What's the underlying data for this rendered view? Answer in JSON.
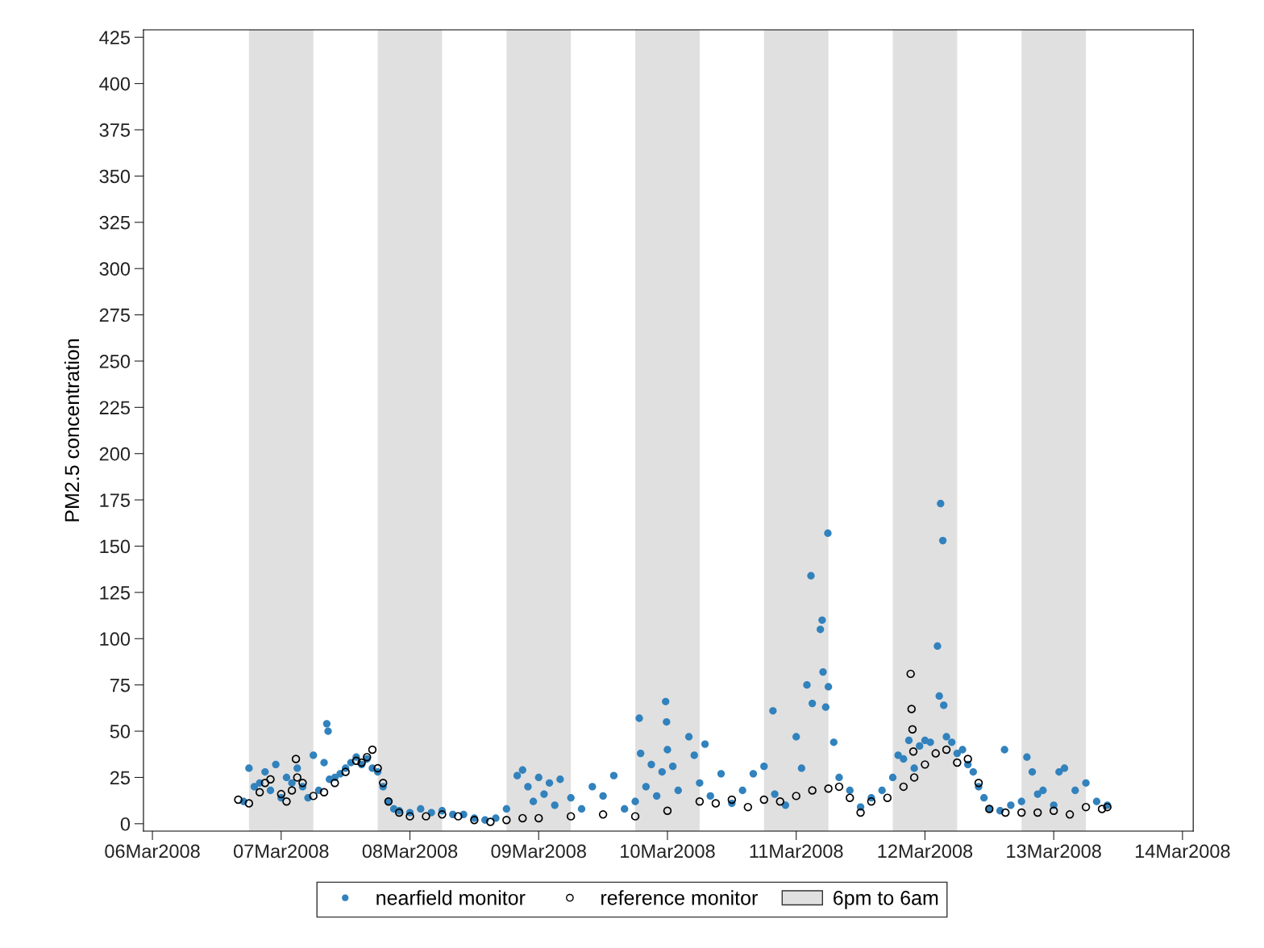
{
  "chart_data": {
    "type": "scatter",
    "ylabel": "PM2.5 concentration",
    "xlim": [
      "2008-03-05T22:20",
      "2008-03-14T02:00"
    ],
    "xticks": [
      {
        "value": "2008-03-06",
        "label": "06Mar2008"
      },
      {
        "value": "2008-03-07",
        "label": "07Mar2008"
      },
      {
        "value": "2008-03-08",
        "label": "08Mar2008"
      },
      {
        "value": "2008-03-09",
        "label": "09Mar2008"
      },
      {
        "value": "2008-03-10",
        "label": "10Mar2008"
      },
      {
        "value": "2008-03-11",
        "label": "11Mar2008"
      },
      {
        "value": "2008-03-12",
        "label": "12Mar2008"
      },
      {
        "value": "2008-03-13",
        "label": "13Mar2008"
      },
      {
        "value": "2008-03-14",
        "label": "14Mar2008"
      }
    ],
    "ylim": [
      -4,
      429
    ],
    "yticks": [
      0,
      25,
      50,
      75,
      100,
      125,
      150,
      175,
      200,
      225,
      250,
      275,
      300,
      325,
      350,
      375,
      400,
      425
    ],
    "grid": false,
    "legend": "bottom",
    "marker": "circle",
    "bands": [
      {
        "axis": "x",
        "from": "2008-03-06T18:00",
        "to": "2008-03-07T06:00",
        "label": "6pm to 6am",
        "color": "#e0e0e0"
      },
      {
        "axis": "x",
        "from": "2008-03-07T18:00",
        "to": "2008-03-08T06:00",
        "color": "#e0e0e0"
      },
      {
        "axis": "x",
        "from": "2008-03-08T18:00",
        "to": "2008-03-09T06:00",
        "color": "#e0e0e0"
      },
      {
        "axis": "x",
        "from": "2008-03-09T18:00",
        "to": "2008-03-10T06:00",
        "color": "#e0e0e0"
      },
      {
        "axis": "x",
        "from": "2008-03-10T18:00",
        "to": "2008-03-11T06:00",
        "color": "#e0e0e0"
      },
      {
        "axis": "x",
        "from": "2008-03-11T18:00",
        "to": "2008-03-12T06:00",
        "color": "#e0e0e0"
      },
      {
        "axis": "x",
        "from": "2008-03-12T18:00",
        "to": "2008-03-13T06:00",
        "color": "#e0e0e0"
      }
    ],
    "series": [
      {
        "name": "nearfield monitor",
        "color": "#3182bd",
        "x": [
          "2008-03-06T17:00",
          "2008-03-06T18:00",
          "2008-03-06T19:00",
          "2008-03-06T20:00",
          "2008-03-06T21:00",
          "2008-03-06T22:00",
          "2008-03-06T23:00",
          "2008-03-07T00:00",
          "2008-03-07T01:00",
          "2008-03-07T02:00",
          "2008-03-07T03:00",
          "2008-03-07T04:00",
          "2008-03-07T05:00",
          "2008-03-07T06:00",
          "2008-03-07T07:00",
          "2008-03-07T08:00",
          "2008-03-07T08:30",
          "2008-03-07T08:45",
          "2008-03-07T09:00",
          "2008-03-07T10:00",
          "2008-03-07T11:00",
          "2008-03-07T12:00",
          "2008-03-07T13:00",
          "2008-03-07T14:00",
          "2008-03-07T15:00",
          "2008-03-07T16:00",
          "2008-03-07T17:00",
          "2008-03-07T18:00",
          "2008-03-07T19:00",
          "2008-03-07T20:00",
          "2008-03-07T21:00",
          "2008-03-07T22:00",
          "2008-03-08T00:00",
          "2008-03-08T02:00",
          "2008-03-08T04:00",
          "2008-03-08T06:00",
          "2008-03-08T08:00",
          "2008-03-08T10:00",
          "2008-03-08T12:00",
          "2008-03-08T14:00",
          "2008-03-08T16:00",
          "2008-03-08T18:00",
          "2008-03-08T20:00",
          "2008-03-08T21:00",
          "2008-03-08T22:00",
          "2008-03-08T23:00",
          "2008-03-09T00:00",
          "2008-03-09T01:00",
          "2008-03-09T02:00",
          "2008-03-09T03:00",
          "2008-03-09T04:00",
          "2008-03-09T06:00",
          "2008-03-09T08:00",
          "2008-03-09T10:00",
          "2008-03-09T12:00",
          "2008-03-09T14:00",
          "2008-03-09T16:00",
          "2008-03-09T18:00",
          "2008-03-09T18:45",
          "2008-03-09T19:00",
          "2008-03-09T20:00",
          "2008-03-09T21:00",
          "2008-03-09T22:00",
          "2008-03-09T23:00",
          "2008-03-09T23:40",
          "2008-03-09T23:50",
          "2008-03-10T00:00",
          "2008-03-10T01:00",
          "2008-03-10T02:00",
          "2008-03-10T04:00",
          "2008-03-10T05:00",
          "2008-03-10T06:00",
          "2008-03-10T07:00",
          "2008-03-10T08:00",
          "2008-03-10T10:00",
          "2008-03-10T12:00",
          "2008-03-10T14:00",
          "2008-03-10T16:00",
          "2008-03-10T18:00",
          "2008-03-10T19:40",
          "2008-03-10T20:00",
          "2008-03-10T22:00",
          "2008-03-11T00:00",
          "2008-03-11T01:00",
          "2008-03-11T02:00",
          "2008-03-11T02:45",
          "2008-03-11T03:00",
          "2008-03-11T04:30",
          "2008-03-11T04:50",
          "2008-03-11T05:00",
          "2008-03-11T05:30",
          "2008-03-11T05:54",
          "2008-03-11T06:00",
          "2008-03-11T07:00",
          "2008-03-11T08:00",
          "2008-03-11T10:00",
          "2008-03-11T12:00",
          "2008-03-11T14:00",
          "2008-03-11T16:00",
          "2008-03-11T18:00",
          "2008-03-11T19:00",
          "2008-03-11T20:00",
          "2008-03-11T21:00",
          "2008-03-11T22:00",
          "2008-03-11T23:00",
          "2008-03-12T00:00",
          "2008-03-12T01:00",
          "2008-03-12T02:20",
          "2008-03-12T02:40",
          "2008-03-12T02:55",
          "2008-03-12T03:20",
          "2008-03-12T03:30",
          "2008-03-12T04:00",
          "2008-03-12T05:00",
          "2008-03-12T06:00",
          "2008-03-12T07:00",
          "2008-03-12T08:00",
          "2008-03-12T09:00",
          "2008-03-12T10:00",
          "2008-03-12T11:00",
          "2008-03-12T12:00",
          "2008-03-12T14:00",
          "2008-03-12T14:50",
          "2008-03-12T16:00",
          "2008-03-12T18:00",
          "2008-03-12T19:00",
          "2008-03-12T20:00",
          "2008-03-12T21:00",
          "2008-03-12T22:00",
          "2008-03-13T00:00",
          "2008-03-13T01:00",
          "2008-03-13T02:00",
          "2008-03-13T04:00",
          "2008-03-13T06:00",
          "2008-03-13T08:00",
          "2008-03-13T10:00"
        ],
        "values": [
          12,
          30,
          20,
          22,
          28,
          18,
          32,
          14,
          25,
          22,
          30,
          20,
          14,
          37,
          18,
          33,
          54,
          50,
          24,
          25,
          27,
          30,
          33,
          36,
          32,
          35,
          30,
          28,
          20,
          12,
          8,
          7,
          6,
          8,
          6,
          7,
          5,
          5,
          3,
          2,
          3,
          8,
          26,
          29,
          20,
          12,
          25,
          16,
          22,
          10,
          24,
          14,
          8,
          20,
          15,
          26,
          8,
          12,
          57,
          38,
          20,
          32,
          15,
          28,
          66,
          55,
          40,
          31,
          18,
          47,
          37,
          22,
          43,
          15,
          27,
          11,
          18,
          27,
          31,
          61,
          16,
          10,
          47,
          30,
          75,
          134,
          65,
          105,
          110,
          82,
          63,
          157,
          74,
          44,
          25,
          18,
          9,
          14,
          18,
          25,
          37,
          35,
          45,
          30,
          42,
          45,
          44,
          96,
          69,
          173,
          153,
          64,
          47,
          44,
          38,
          40,
          32,
          28,
          20,
          14,
          8,
          7,
          40,
          10,
          12,
          36,
          28,
          16,
          18,
          10,
          28,
          30,
          18,
          22,
          12,
          10
        ]
      },
      {
        "name": "reference monitor",
        "color": "#000000",
        "x": [
          "2008-03-06T16:00",
          "2008-03-06T18:00",
          "2008-03-06T20:00",
          "2008-03-06T21:00",
          "2008-03-06T22:00",
          "2008-03-07T00:00",
          "2008-03-07T01:00",
          "2008-03-07T02:00",
          "2008-03-07T02:45",
          "2008-03-07T03:00",
          "2008-03-07T04:00",
          "2008-03-07T06:00",
          "2008-03-07T08:00",
          "2008-03-07T10:00",
          "2008-03-07T12:00",
          "2008-03-07T14:00",
          "2008-03-07T15:00",
          "2008-03-07T16:00",
          "2008-03-07T17:00",
          "2008-03-07T18:00",
          "2008-03-07T19:00",
          "2008-03-07T20:00",
          "2008-03-07T22:00",
          "2008-03-08T00:00",
          "2008-03-08T03:00",
          "2008-03-08T06:00",
          "2008-03-08T09:00",
          "2008-03-08T12:00",
          "2008-03-08T15:00",
          "2008-03-08T18:00",
          "2008-03-08T21:00",
          "2008-03-09T00:00",
          "2008-03-09T06:00",
          "2008-03-09T12:00",
          "2008-03-09T18:00",
          "2008-03-10T00:00",
          "2008-03-10T06:00",
          "2008-03-10T09:00",
          "2008-03-10T12:00",
          "2008-03-10T15:00",
          "2008-03-10T18:00",
          "2008-03-10T21:00",
          "2008-03-11T00:00",
          "2008-03-11T03:00",
          "2008-03-11T06:00",
          "2008-03-11T08:00",
          "2008-03-11T10:00",
          "2008-03-11T12:00",
          "2008-03-11T14:00",
          "2008-03-11T17:00",
          "2008-03-11T20:00",
          "2008-03-11T21:20",
          "2008-03-11T21:30",
          "2008-03-11T21:40",
          "2008-03-11T21:50",
          "2008-03-11T22:00",
          "2008-03-12T00:00",
          "2008-03-12T02:00",
          "2008-03-12T04:00",
          "2008-03-12T06:00",
          "2008-03-12T08:00",
          "2008-03-12T10:00",
          "2008-03-12T12:00",
          "2008-03-12T15:00",
          "2008-03-12T18:00",
          "2008-03-12T21:00",
          "2008-03-13T00:00",
          "2008-03-13T03:00",
          "2008-03-13T06:00",
          "2008-03-13T09:00",
          "2008-03-13T10:00"
        ],
        "values": [
          13,
          11,
          17,
          22,
          24,
          16,
          12,
          18,
          35,
          25,
          22,
          15,
          17,
          22,
          28,
          34,
          33,
          36,
          40,
          30,
          22,
          12,
          6,
          4,
          4,
          5,
          4,
          2,
          1,
          2,
          3,
          3,
          4,
          5,
          4,
          7,
          12,
          11,
          13,
          9,
          13,
          12,
          15,
          18,
          19,
          20,
          14,
          6,
          12,
          14,
          20,
          81,
          62,
          51,
          39,
          25,
          32,
          38,
          40,
          33,
          35,
          22,
          8,
          6,
          6,
          6,
          7,
          5,
          9,
          8,
          9
        ]
      }
    ]
  }
}
